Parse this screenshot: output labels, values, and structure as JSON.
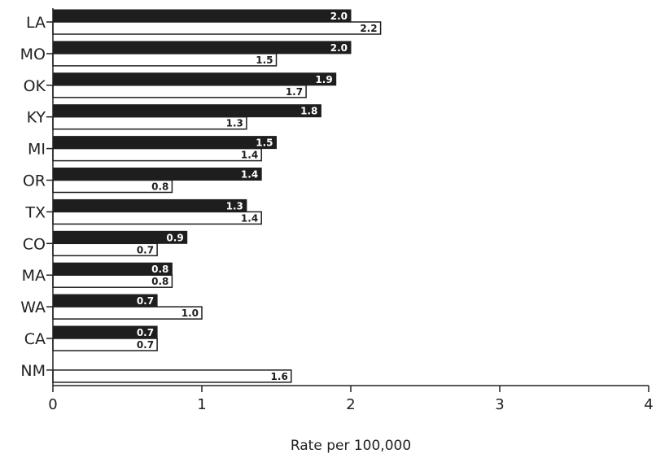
{
  "chart_data": {
    "type": "bar",
    "orientation": "horizontal",
    "categories": [
      "LA",
      "MO",
      "OK",
      "KY",
      "MI",
      "OR",
      "TX",
      "CO",
      "MA",
      "WA",
      "CA",
      "NM"
    ],
    "series": [
      {
        "values": [
          2.0,
          2.0,
          1.9,
          1.8,
          1.5,
          1.4,
          1.3,
          0.9,
          0.8,
          0.7,
          0.7,
          null
        ],
        "color": "#1e1e1e"
      },
      {
        "values": [
          2.2,
          1.5,
          1.7,
          1.3,
          1.4,
          0.8,
          1.4,
          0.7,
          0.8,
          1.0,
          0.7,
          1.6
        ],
        "color": "#ffffff"
      }
    ],
    "value_labels_series1": [
      "2.0",
      "2.0",
      "1.9",
      "1.8",
      "1.5",
      "1.4",
      "1.3",
      "0.9",
      "0.8",
      "0.7",
      "0.7",
      ""
    ],
    "value_labels_series2": [
      "2.2",
      "1.5",
      "1.7",
      "1.3",
      "1.4",
      "0.8",
      "1.4",
      "0.7",
      "0.8",
      "1.0",
      "0.7",
      "1.6"
    ],
    "xlabel": "Rate per 100,000",
    "xlim": [
      0,
      4
    ],
    "xticks": [
      "0",
      "1",
      "2",
      "3",
      "4"
    ],
    "grid": false,
    "legend": "none"
  }
}
